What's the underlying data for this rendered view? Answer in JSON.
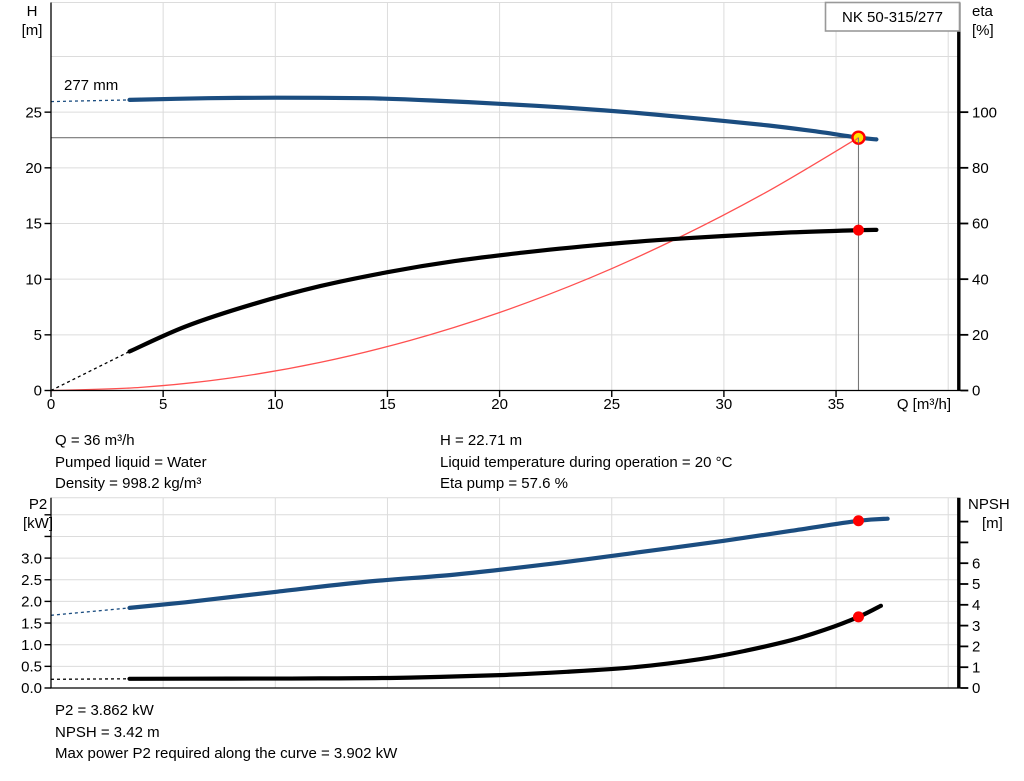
{
  "colors": {
    "blue": "#1b4d80",
    "black": "#000000",
    "red": "#ff0000",
    "red_thin": "#ff5050",
    "yellow": "#ffe100",
    "grid": "#dcdcdc",
    "guide": "#777777",
    "axis": "#000000",
    "box_border": "#999999"
  },
  "info": {
    "left": [
      "Q = 36 m³/h",
      "Pumped liquid = Water",
      "Density = 998.2 kg/m³"
    ],
    "right": [
      "H = 22.71 m",
      "Liquid temperature during operation = 20 °C",
      "Eta pump = 57.6 %"
    ],
    "bottom": [
      "P2 = 3.862 kW",
      "NPSH = 3.42 m",
      "Max power P2 required along the curve = 3.902 kW"
    ]
  },
  "chart_data": [
    {
      "id": "performance",
      "type": "line",
      "name_box": "NK 50-315/277",
      "curve_label": "277 mm",
      "x_axis": {
        "label": "Q [m³/h]",
        "ticks": [
          0,
          5,
          10,
          15,
          20,
          25,
          30,
          35
        ],
        "tick_labels": [
          "0",
          "5",
          "10",
          "15",
          "20",
          "25",
          "30",
          "35"
        ],
        "range": [
          0,
          40.5
        ]
      },
      "y_left": {
        "title": [
          "H",
          "[m]"
        ],
        "ticks": [
          0,
          5,
          10,
          15,
          20,
          25
        ],
        "tick_labels": [
          "0",
          "5",
          "10",
          "15",
          "20",
          "25"
        ],
        "extra_ticks": [],
        "range": [
          0,
          34.8
        ]
      },
      "y_right": {
        "title": [
          "eta",
          "[%]"
        ],
        "ticks": [
          0,
          20,
          40,
          60,
          80,
          100
        ],
        "tick_labels": [
          "0",
          "20",
          "40",
          "60",
          "80",
          "100"
        ],
        "extra_ticks": [],
        "range": [
          0,
          139
        ]
      },
      "grid": {
        "vertical": [
          5,
          10,
          15,
          20,
          25,
          30,
          35,
          40
        ],
        "horizontal": [
          5,
          10,
          15,
          20,
          25,
          30
        ]
      },
      "guides": {
        "h_line": 22.71,
        "v_line": 36
      },
      "series": [
        {
          "name": "system-curve",
          "axis": "left",
          "color_key": "red_thin",
          "thin": true,
          "points": [
            [
              0,
              0
            ],
            [
              4,
              0.28
            ],
            [
              8,
              1.12
            ],
            [
              12,
              2.52
            ],
            [
              16,
              4.49
            ],
            [
              20,
              7.01
            ],
            [
              24,
              10.09
            ],
            [
              28,
              13.74
            ],
            [
              32,
              17.94
            ],
            [
              36,
              22.71
            ]
          ]
        },
        {
          "name": "efficiency-curve",
          "axis": "right",
          "color_key": "black",
          "dashed_lead": [
            [
              0,
              0
            ],
            [
              3.5,
              14
            ]
          ],
          "points": [
            [
              3.5,
              14
            ],
            [
              6,
              23
            ],
            [
              9,
              31
            ],
            [
              12,
              37.5
            ],
            [
              15,
              42.5
            ],
            [
              18,
              46.5
            ],
            [
              21,
              49.5
            ],
            [
              24,
              52
            ],
            [
              27,
              54
            ],
            [
              30,
              55.5
            ],
            [
              33,
              56.8
            ],
            [
              36,
              57.6
            ],
            [
              36.8,
              57.7
            ]
          ]
        },
        {
          "name": "head-curve",
          "axis": "left",
          "color_key": "blue",
          "dashed_lead": [
            [
              0,
              25.95
            ],
            [
              3.5,
              26.1
            ]
          ],
          "points": [
            [
              3.5,
              26.1
            ],
            [
              7,
              26.25
            ],
            [
              10,
              26.3
            ],
            [
              14,
              26.25
            ],
            [
              17,
              26.05
            ],
            [
              20,
              25.75
            ],
            [
              23,
              25.4
            ],
            [
              26,
              24.95
            ],
            [
              29,
              24.4
            ],
            [
              32,
              23.8
            ],
            [
              34,
              23.3
            ],
            [
              36,
              22.71
            ],
            [
              36.8,
              22.55
            ]
          ]
        }
      ],
      "markers": [
        {
          "kind": "dot",
          "q": 36,
          "v": 57.6,
          "axis": "right"
        },
        {
          "kind": "duty",
          "q": 36,
          "v": 22.71,
          "axis": "left"
        }
      ],
      "duty_point": {
        "Q": 36,
        "H": 22.71,
        "eta_pct": 57.6
      }
    },
    {
      "id": "power-npsh",
      "type": "line",
      "x_axis": {
        "label": "",
        "ticks": [],
        "tick_labels": [],
        "range": [
          0,
          40.5
        ]
      },
      "y_left": {
        "title": [
          "P2",
          "[kW]"
        ],
        "ticks": [
          0,
          0.5,
          1,
          1.5,
          2,
          2.5,
          3
        ],
        "tick_labels": [
          "0.0",
          "0.5",
          "1.0",
          "1.5",
          "2.0",
          "2.5",
          "3.0"
        ],
        "extra_ticks": [
          3.5,
          4
        ],
        "range": [
          0,
          4.4
        ]
      },
      "y_right": {
        "title": [
          "NPSH",
          "[m]"
        ],
        "ticks": [
          0,
          1,
          2,
          3,
          4,
          5,
          6
        ],
        "tick_labels": [
          "0",
          "1",
          "2",
          "3",
          "4",
          "5",
          "6"
        ],
        "extra_ticks": [
          7,
          8
        ],
        "range": [
          0,
          9.1
        ]
      },
      "grid": {
        "vertical": [
          5,
          10,
          15,
          20,
          25,
          30,
          35,
          40
        ],
        "horizontal": [
          0.5,
          1,
          1.5,
          2,
          2.5,
          3,
          3.5,
          4
        ]
      },
      "series": [
        {
          "name": "p2-curve",
          "axis": "left",
          "color_key": "blue",
          "dashed_lead": [
            [
              0,
              1.68
            ],
            [
              3.5,
              1.85
            ]
          ],
          "points": [
            [
              3.5,
              1.85
            ],
            [
              6,
              1.98
            ],
            [
              10,
              2.22
            ],
            [
              14,
              2.45
            ],
            [
              18,
              2.62
            ],
            [
              22,
              2.85
            ],
            [
              26,
              3.12
            ],
            [
              30,
              3.4
            ],
            [
              33,
              3.63
            ],
            [
              36,
              3.862
            ],
            [
              37.3,
              3.91
            ]
          ]
        },
        {
          "name": "npsh-curve",
          "axis": "right",
          "color_key": "black",
          "dashed_lead": [
            [
              0,
              0.42
            ],
            [
              3.5,
              0.44
            ]
          ],
          "points": [
            [
              3.5,
              0.44
            ],
            [
              8,
              0.45
            ],
            [
              12,
              0.46
            ],
            [
              16,
              0.5
            ],
            [
              20,
              0.62
            ],
            [
              23,
              0.78
            ],
            [
              26,
              1.0
            ],
            [
              29,
              1.4
            ],
            [
              31,
              1.8
            ],
            [
              33,
              2.3
            ],
            [
              34.5,
              2.8
            ],
            [
              36,
              3.42
            ],
            [
              37,
              3.95
            ]
          ]
        }
      ],
      "markers": [
        {
          "kind": "dot",
          "q": 36,
          "v": 3.862,
          "axis": "left"
        },
        {
          "kind": "dot",
          "q": 36,
          "v": 3.42,
          "axis": "right"
        }
      ],
      "duty_point": {
        "P2_kW": 3.862,
        "NPSH_m": 3.42
      }
    }
  ]
}
